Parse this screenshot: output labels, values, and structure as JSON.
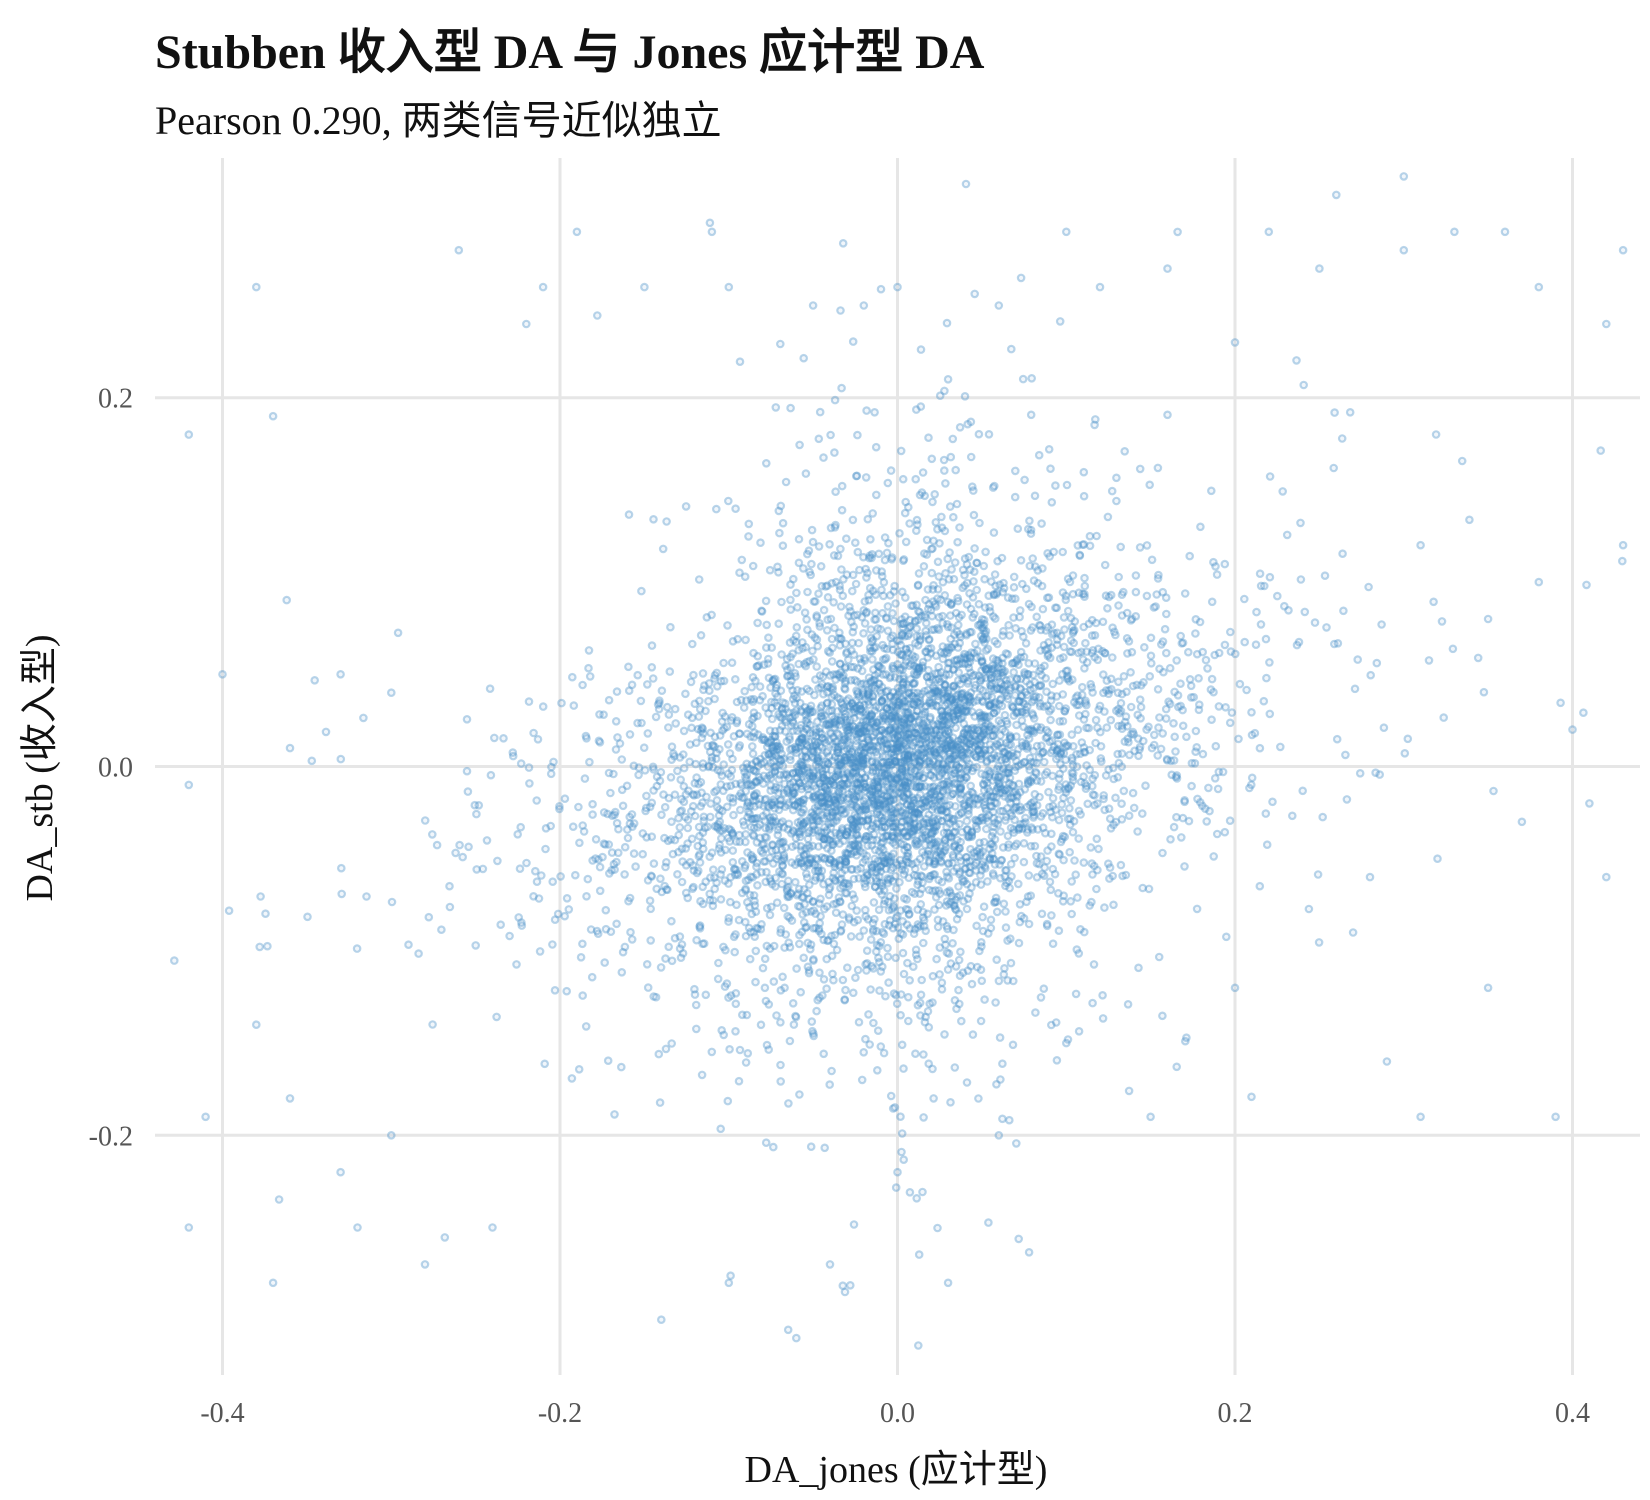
{
  "chart_data": {
    "type": "scatter",
    "title": "Stubben 收入型 DA 与 Jones 应计型 DA",
    "subtitle": "Pearson 0.290, 两类信号近似独立",
    "xlabel": "DA_jones (应计型)",
    "ylabel": "DA_stb (收入型)",
    "xlim": [
      -0.44,
      0.44
    ],
    "ylim": [
      -0.33,
      0.33
    ],
    "x_ticks": [
      -0.4,
      -0.2,
      0.0,
      0.2,
      0.4
    ],
    "x_tick_labels": [
      "-0.4",
      "-0.2",
      "0.0",
      "0.2",
      "0.4"
    ],
    "y_ticks": [
      -0.2,
      0.0,
      0.2
    ],
    "y_tick_labels": [
      "-0.2",
      "0.0",
      "0.2"
    ],
    "grid": true,
    "legend": "none",
    "point_color": "#4a90c8",
    "points_note": "dense cloud centred at (0,0), approx. 6000 observations, correlation 0.290",
    "points": [
      [
        -0.42,
        0.18
      ],
      [
        -0.37,
        0.19
      ],
      [
        -0.38,
        0.26
      ],
      [
        -0.26,
        0.28
      ],
      [
        -0.19,
        0.29
      ],
      [
        -0.11,
        0.29
      ],
      [
        -0.21,
        0.26
      ],
      [
        -0.22,
        0.24
      ],
      [
        -0.15,
        0.26
      ],
      [
        -0.1,
        0.26
      ],
      [
        -0.05,
        0.25
      ],
      [
        -0.02,
        0.25
      ],
      [
        0.0,
        0.26
      ],
      [
        0.03,
        0.21
      ],
      [
        0.06,
        0.25
      ],
      [
        0.1,
        0.29
      ],
      [
        0.12,
        0.26
      ],
      [
        0.16,
        0.27
      ],
      [
        0.2,
        0.23
      ],
      [
        0.22,
        0.29
      ],
      [
        0.25,
        0.27
      ],
      [
        0.3,
        0.28
      ],
      [
        0.33,
        0.29
      ],
      [
        0.36,
        0.29
      ],
      [
        0.38,
        0.26
      ],
      [
        0.42,
        0.24
      ],
      [
        0.43,
        0.28
      ],
      [
        0.26,
        0.31
      ],
      [
        0.3,
        0.32
      ],
      [
        -0.4,
        0.05
      ],
      [
        -0.42,
        -0.01
      ],
      [
        -0.36,
        0.01
      ],
      [
        -0.33,
        0.05
      ],
      [
        -0.3,
        0.04
      ],
      [
        -0.38,
        -0.14
      ],
      [
        -0.41,
        -0.19
      ],
      [
        -0.36,
        -0.18
      ],
      [
        -0.33,
        -0.22
      ],
      [
        -0.3,
        -0.2
      ],
      [
        -0.42,
        -0.25
      ],
      [
        -0.37,
        -0.28
      ],
      [
        -0.32,
        -0.25
      ],
      [
        -0.28,
        -0.27
      ],
      [
        -0.24,
        -0.25
      ],
      [
        -0.14,
        -0.3
      ],
      [
        -0.1,
        -0.28
      ],
      [
        -0.06,
        -0.31
      ],
      [
        -0.04,
        -0.27
      ],
      [
        0.03,
        -0.28
      ],
      [
        0.0,
        -0.22
      ],
      [
        0.06,
        -0.2
      ],
      [
        0.1,
        -0.15
      ],
      [
        0.15,
        -0.19
      ],
      [
        0.2,
        -0.12
      ],
      [
        0.29,
        -0.16
      ],
      [
        0.31,
        -0.19
      ],
      [
        0.35,
        -0.12
      ],
      [
        0.39,
        -0.19
      ],
      [
        0.42,
        -0.06
      ],
      [
        0.4,
        0.02
      ],
      [
        0.43,
        0.12
      ],
      [
        0.38,
        0.1
      ],
      [
        0.35,
        0.08
      ],
      [
        0.31,
        0.12
      ],
      [
        0.41,
        -0.02
      ],
      [
        0.37,
        -0.03
      ],
      [
        0.28,
        -0.06
      ],
      [
        0.27,
        -0.09
      ],
      [
        0.32,
        -0.05
      ]
    ]
  }
}
